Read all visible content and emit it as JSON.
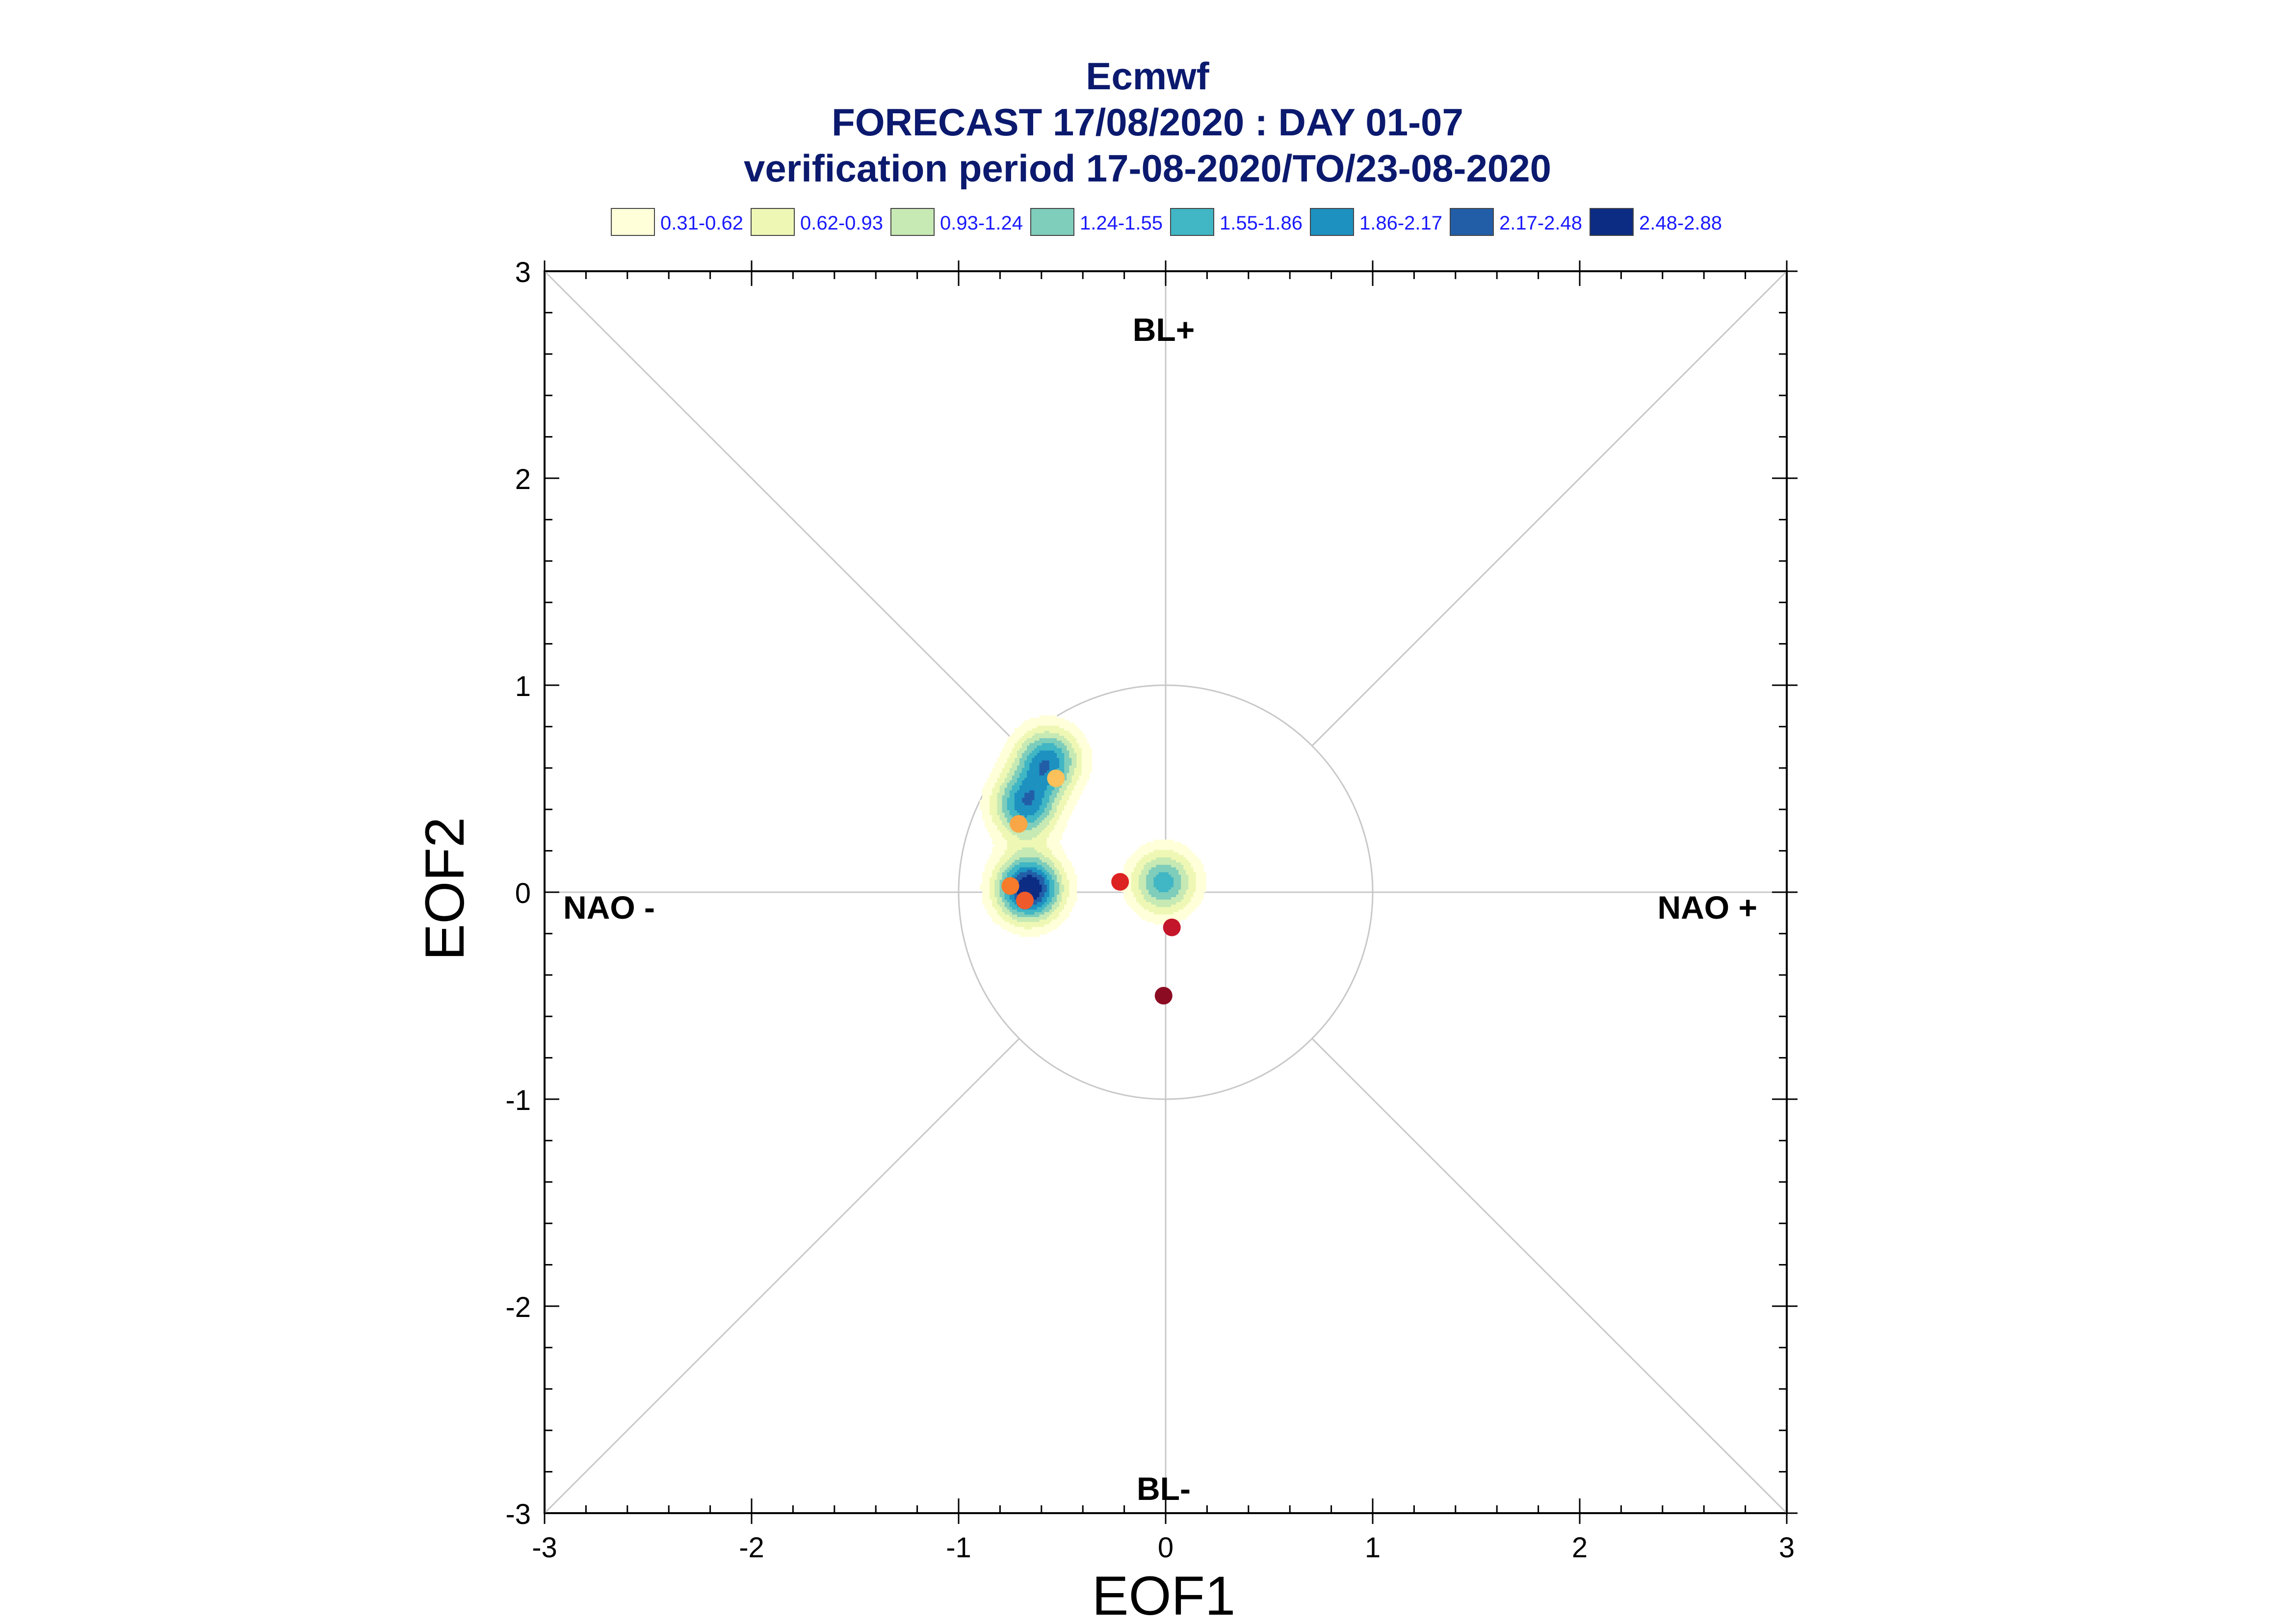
{
  "chart_data": {
    "type": "scatter",
    "title": "Ecmwf",
    "subtitle": "FORECAST 17/08/2020 : DAY 01-07",
    "subtitle2": "verification period 17-08-2020/TO/23-08-2020",
    "xlabel": "EOF1",
    "ylabel": "EOF2",
    "xlim": [
      -3,
      3
    ],
    "ylim": [
      -3,
      3
    ],
    "xticks": [
      "-3",
      "-2",
      "-1",
      "0",
      "1",
      "2",
      "3"
    ],
    "yticks": [
      "-3",
      "-2",
      "-1",
      "0",
      "1",
      "2",
      "3"
    ],
    "regime_labels": {
      "top": "BL+",
      "bottom": "BL-",
      "left": "NAO -",
      "right": "NAO +"
    },
    "legend": {
      "placement": "top",
      "entries": [
        {
          "label": "0.31-0.62",
          "color": "#ffffd9"
        },
        {
          "label": "0.62-0.93",
          "color": "#eef8b4"
        },
        {
          "label": "0.93-1.24",
          "color": "#c7e9b4"
        },
        {
          "label": "1.24-1.55",
          "color": "#7fcdbb"
        },
        {
          "label": "1.55-1.86",
          "color": "#41b6c4"
        },
        {
          "label": "1.86-2.17",
          "color": "#1d91c0"
        },
        {
          "label": "2.17-2.48",
          "color": "#225ea8"
        },
        {
          "label": "2.48-2.88",
          "color": "#0c2c84"
        }
      ]
    },
    "reference_circle_radius": 1,
    "points": [
      {
        "x": -0.71,
        "y": 0.33,
        "color": "#f9a646"
      },
      {
        "x": -0.53,
        "y": 0.55,
        "color": "#fcc15a"
      },
      {
        "x": -0.75,
        "y": 0.03,
        "color": "#f77b2a"
      },
      {
        "x": -0.68,
        "y": -0.04,
        "color": "#ef5a2b"
      },
      {
        "x": -0.22,
        "y": 0.05,
        "color": "#dd2222"
      },
      {
        "x": 0.03,
        "y": -0.17,
        "color": "#c4162a"
      },
      {
        "x": -0.01,
        "y": -0.5,
        "color": "#8b0c22"
      }
    ],
    "density_centers": [
      {
        "x": -0.57,
        "y": 0.64,
        "peak": 2.0
      },
      {
        "x": -0.68,
        "y": 0.42,
        "peak": 2.0
      },
      {
        "x": -0.66,
        "y": 0.02,
        "peak": 2.88
      },
      {
        "x": -0.01,
        "y": 0.05,
        "peak": 1.7
      }
    ],
    "grid": false,
    "grid_lines": "diagonals and zero axes"
  }
}
